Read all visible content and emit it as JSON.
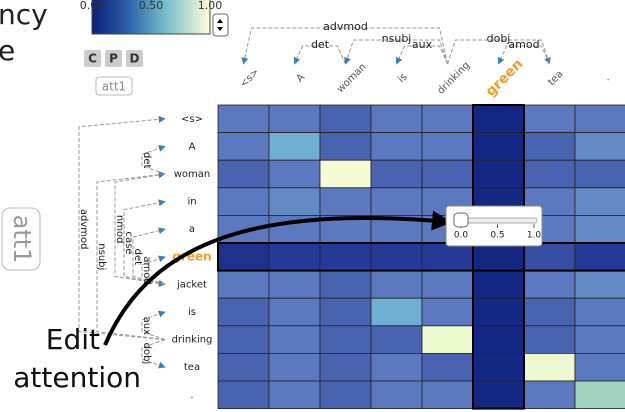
{
  "header_fragments": [
    "ncy",
    "e"
  ],
  "colorbar": {
    "ticks": [
      {
        "value": 0,
        "label": "0.00"
      },
      {
        "value": 0.5,
        "label": "0.50"
      },
      {
        "value": 1,
        "label": "1.00"
      }
    ]
  },
  "buttons": [
    "C",
    "P",
    "D"
  ],
  "layer_button": "att1",
  "side_label": "att1",
  "top_tokens": [
    "<s>",
    "A",
    "woman",
    "is",
    "drinking",
    "green",
    "tea",
    "."
  ],
  "top_arcs": [
    {
      "label": "advmod",
      "from": 4,
      "to": 0
    },
    {
      "label": "det",
      "from": 2,
      "to": 1
    },
    {
      "label": "nsubj",
      "from": 4,
      "to": 2
    },
    {
      "label": "aux",
      "from": 4,
      "to": 3
    },
    {
      "label": "dobj",
      "from": 4,
      "to": 6
    },
    {
      "label": "amod",
      "from": 6,
      "to": 5
    }
  ],
  "row_tokens": [
    "<s>",
    "A",
    "woman",
    "in",
    "a",
    "green",
    "jacket",
    "is",
    "drinking",
    "tea",
    "."
  ],
  "left_arcs": [
    {
      "label": "det",
      "from": 2,
      "to": 1
    },
    {
      "label": "advmod",
      "from": 8,
      "to": 0
    },
    {
      "label": "nsubj",
      "from": 8,
      "to": 2
    },
    {
      "label": "nmod",
      "from": 2,
      "to": 6
    },
    {
      "label": "case",
      "from": 6,
      "to": 3
    },
    {
      "label": "det",
      "from": 6,
      "to": 4
    },
    {
      "label": "amod",
      "from": 6,
      "to": 5
    },
    {
      "label": "aux",
      "from": 8,
      "to": 7
    },
    {
      "label": "dobj",
      "from": 8,
      "to": 9
    }
  ],
  "highlight_row": 5,
  "highlight_col": 5,
  "heatmap": {
    "values": [
      [
        0.3,
        0.3,
        0.25,
        0.3,
        0.3,
        0.05,
        0.3,
        0.3
      ],
      [
        0.3,
        0.45,
        0.25,
        0.3,
        0.3,
        0.05,
        0.25,
        0.35
      ],
      [
        0.25,
        0.3,
        0.95,
        0.25,
        0.25,
        0.05,
        0.25,
        0.25
      ],
      [
        0.3,
        0.35,
        0.3,
        0.3,
        0.3,
        0.05,
        0.3,
        0.35
      ],
      [
        0.3,
        0.3,
        0.3,
        0.3,
        0.3,
        0.05,
        0.3,
        0.35
      ],
      [
        0.1,
        0.15,
        0.15,
        0.15,
        0.15,
        0.05,
        0.2,
        0.15
      ],
      [
        0.3,
        0.3,
        0.25,
        0.3,
        0.3,
        0.05,
        0.3,
        0.35
      ],
      [
        0.25,
        0.3,
        0.25,
        0.45,
        0.3,
        0.05,
        0.25,
        0.3
      ],
      [
        0.25,
        0.3,
        0.25,
        0.25,
        0.9,
        0.05,
        0.25,
        0.3
      ],
      [
        0.25,
        0.3,
        0.25,
        0.3,
        0.25,
        0.05,
        0.9,
        0.3
      ],
      [
        0.25,
        0.3,
        0.25,
        0.3,
        0.3,
        0.05,
        0.3,
        0.6
      ]
    ]
  },
  "slider": {
    "value": 0,
    "ticks": [
      {
        "value": 0,
        "label": "0.0"
      },
      {
        "value": 0.5,
        "label": "0.5"
      },
      {
        "value": 1,
        "label": "1.0"
      }
    ]
  },
  "annotation": [
    "Edit",
    "attention"
  ]
}
